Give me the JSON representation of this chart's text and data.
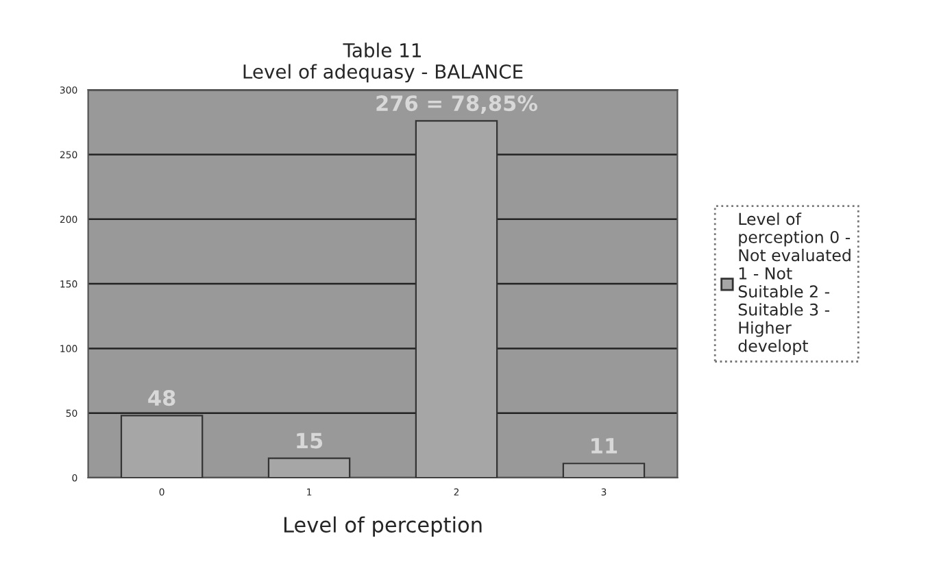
{
  "chart_data": {
    "type": "bar",
    "title": "Table 11\nLevel of adequasy - BALANCE",
    "xlabel": "Level of perception",
    "categories": [
      "0",
      "1",
      "2",
      "3"
    ],
    "series": [
      {
        "name": "Level of perception 0 - Not evaluated 1 - Not Suitable 2 - Suitable 3 - Higher developt",
        "color": "#a6a6a6",
        "values": [
          48,
          15,
          276,
          11
        ],
        "value_labels": [
          "48",
          "15",
          "276 = 78,85%",
          "11"
        ]
      }
    ],
    "ylim": [
      0,
      300
    ],
    "yticks": [
      0,
      50,
      100,
      150,
      200,
      250,
      300
    ],
    "grid": "y",
    "legend": "right"
  }
}
